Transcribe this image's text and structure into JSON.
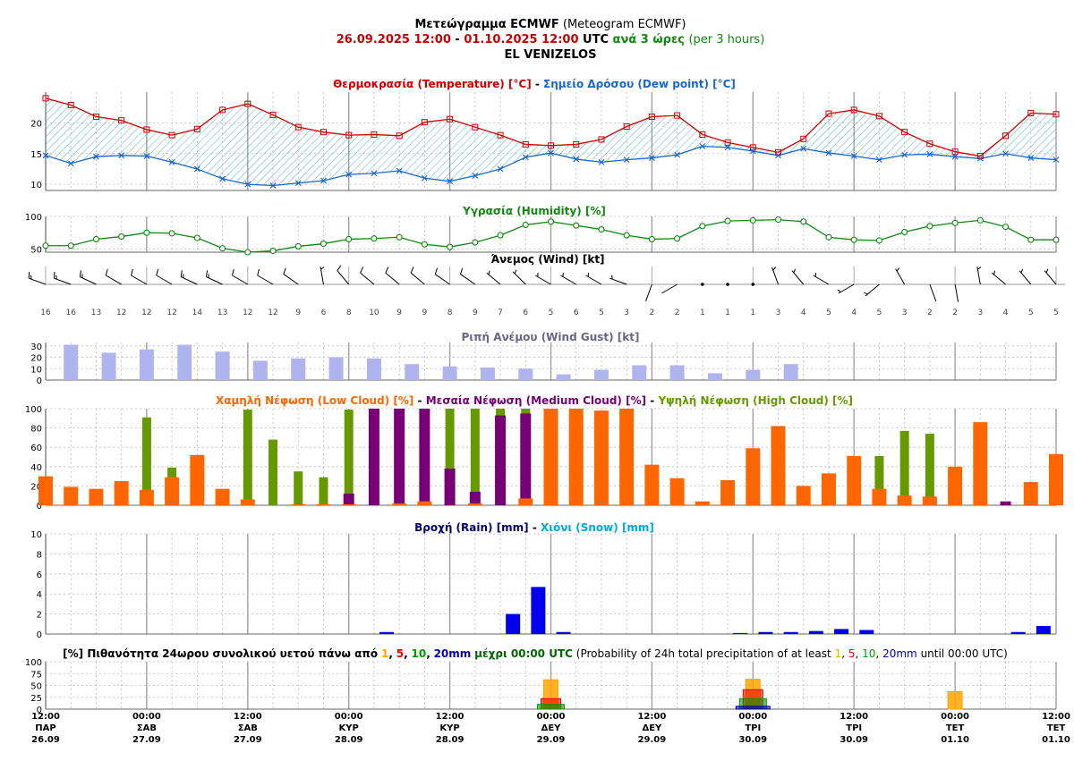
{
  "header": {
    "title_el": "Μετεώγραμμα ECMWF",
    "title_en": "(Meteogram ECMWF)",
    "period_start": "26.09.2025 12:00",
    "period_sep": "-",
    "period_end": "01.10.2025 12:00",
    "period_utc": "UTC",
    "step_el": "ανά 3 ώρες",
    "step_en": "(per 3 hours)",
    "station": "EL VENIZELOS"
  },
  "colors": {
    "temperature": "#cc0000",
    "dewpoint": "#1a66cc",
    "hatch": "#1aa0b0",
    "humidity": "#118811",
    "gust": "#b0b4ee",
    "gust_title": "#666688",
    "low_cloud": "#ff6600",
    "medium_cloud": "#770077",
    "high_cloud": "#669900",
    "rain": "#0000ee",
    "rain_title": "#000077",
    "snow_title": "#00aadd",
    "p1": "#ffa500",
    "p5": "#ee0000",
    "p10": "#009900",
    "p20": "#0000aa"
  },
  "chart_data": [
    {
      "type": "line",
      "panel": "temperature",
      "title_parts": [
        "Θερμοκρασία (Temperature) [°C]",
        "-",
        "Σημείο Δρόσου (Dew point) [°C]"
      ],
      "yticks": [
        "10",
        "15",
        "20"
      ],
      "ylim": [
        9,
        25
      ],
      "series": [
        {
          "name": "Θερμοκρασία (Temperature) [°C]",
          "values": [
            24.0,
            22.9,
            21.0,
            20.4,
            18.9,
            18.0,
            19.0,
            22.1,
            23.1,
            21.3,
            19.3,
            18.5,
            18.0,
            18.1,
            17.9,
            20.1,
            20.6,
            19.3,
            18.0,
            16.5,
            16.3,
            16.5,
            17.3,
            19.4,
            21.0,
            21.2,
            18.1,
            16.8,
            16.0,
            15.2,
            17.4,
            21.5,
            22.1,
            21.1,
            18.5,
            16.6,
            15.3,
            14.6,
            17.9,
            21.6,
            21.4
          ]
        },
        {
          "name": "Σημείο Δρόσου (Dew point) [°C]",
          "values": [
            14.7,
            13.4,
            14.5,
            14.7,
            14.6,
            13.6,
            12.5,
            10.9,
            10.0,
            9.8,
            10.2,
            10.6,
            11.6,
            11.8,
            12.2,
            11.0,
            10.5,
            11.4,
            12.5,
            14.4,
            15.1,
            14.1,
            13.6,
            14.0,
            14.3,
            14.8,
            16.2,
            16.0,
            15.4,
            14.7,
            15.8,
            15.1,
            14.6,
            14.0,
            14.8,
            14.9,
            14.5,
            14.2,
            15.0,
            14.3,
            14.0
          ]
        }
      ]
    },
    {
      "type": "line",
      "panel": "humidity",
      "title": "Υγρασία (Humidity) [%]",
      "yticks": [
        "50",
        "100"
      ],
      "ylim": [
        45,
        100
      ],
      "values": [
        55,
        55,
        65,
        69,
        75,
        74,
        67,
        51,
        45,
        47,
        54,
        58,
        65,
        66,
        68,
        57,
        53,
        60,
        71,
        87,
        92,
        86,
        80,
        71,
        65,
        66,
        85,
        93,
        94,
        95,
        92,
        68,
        64,
        63,
        76,
        85,
        90,
        94,
        84,
        64,
        64
      ]
    },
    {
      "type": "table",
      "panel": "wind",
      "title": "Άνεμος (Wind) [kt]",
      "speeds": [
        16,
        16,
        13,
        12,
        12,
        12,
        14,
        13,
        12,
        12,
        9,
        6,
        8,
        10,
        9,
        9,
        8,
        9,
        7,
        6,
        5,
        6,
        5,
        3,
        2,
        2,
        1,
        1,
        1,
        3,
        4,
        5,
        4,
        5,
        3,
        2,
        2,
        3,
        4,
        5,
        5
      ],
      "directions_deg": [
        290,
        290,
        295,
        300,
        300,
        300,
        295,
        295,
        300,
        300,
        305,
        350,
        320,
        310,
        310,
        310,
        305,
        305,
        310,
        315,
        300,
        300,
        300,
        290,
        200,
        240,
        0,
        0,
        160,
        340,
        320,
        300,
        240,
        230,
        330,
        160,
        170,
        350,
        310,
        320,
        320
      ]
    },
    {
      "type": "bar",
      "panel": "gust",
      "title": "Ριπή Ανέμου (Wind Gust) [kt]",
      "yticks": [
        "0",
        "10",
        "20",
        "30"
      ],
      "ylim": [
        0,
        33
      ],
      "values": [
        0,
        0,
        31,
        0,
        0,
        24,
        0,
        0,
        27,
        0,
        0,
        31,
        0,
        0,
        25,
        0,
        0,
        17,
        0,
        0,
        19,
        0,
        0,
        20,
        0,
        0,
        19,
        0,
        0,
        14,
        0,
        0,
        12,
        0,
        0,
        11,
        0,
        0,
        10,
        0,
        0,
        5,
        0,
        0,
        9,
        0,
        0,
        13,
        0,
        0,
        13,
        0,
        0,
        6,
        0,
        0,
        9,
        0,
        0,
        14,
        0,
        0,
        0,
        0,
        0,
        0,
        0,
        0,
        0,
        0,
        0,
        0,
        0,
        0,
        0,
        0,
        0,
        0,
        0,
        0,
        0
      ]
    },
    {
      "type": "bar",
      "panel": "cloud",
      "title_parts": [
        "Χαμηλή Νέφωση (Low Cloud) [%]",
        "-",
        "Μεσαία Νέφωση (Medium Cloud) [%]",
        "-",
        "Υψηλή Νέφωση (High Cloud) [%]"
      ],
      "yticks": [
        "0",
        "20",
        "40",
        "60",
        "80",
        "100"
      ],
      "ylim": [
        0,
        100
      ],
      "series": [
        {
          "name": "Χαμηλή Νέφωση (Low Cloud) [%]",
          "values": [
            30,
            19,
            17,
            25,
            16,
            29,
            52,
            17,
            6,
            0,
            1,
            1,
            1,
            0,
            2,
            4,
            0,
            2,
            0,
            7,
            100,
            100,
            98,
            100,
            42,
            28,
            4,
            26,
            59,
            82,
            20,
            33,
            51,
            17,
            10,
            9,
            40,
            86,
            0,
            24,
            53
          ]
        },
        {
          "name": "Μεσαία Νέφωση (Medium Cloud) [%]",
          "values": [
            0,
            0,
            0,
            0,
            0,
            0,
            0,
            0,
            0,
            0,
            0,
            0,
            12,
            100,
            100,
            100,
            38,
            14,
            93,
            95,
            0,
            0,
            0,
            0,
            0,
            0,
            0,
            0,
            0,
            0,
            0,
            0,
            0,
            0,
            0,
            0,
            0,
            0,
            4,
            0,
            0
          ]
        },
        {
          "name": "Υψηλή Νέφωση (High Cloud) [%]",
          "values": [
            0,
            0,
            0,
            0,
            91,
            39,
            0,
            0,
            99,
            68,
            35,
            29,
            99,
            0,
            0,
            0,
            100,
            100,
            100,
            100,
            0,
            0,
            0,
            0,
            0,
            0,
            0,
            0,
            0,
            0,
            0,
            0,
            0,
            51,
            77,
            74,
            0,
            0,
            0,
            0,
            0
          ]
        }
      ]
    },
    {
      "type": "bar",
      "panel": "precipitation",
      "title_parts": [
        "Βροχή (Rain) [mm]",
        "-",
        "Χιόνι (Snow) [mm]"
      ],
      "yticks": [
        "0",
        "2",
        "4",
        "6",
        "8",
        "10"
      ],
      "ylim": [
        0,
        10
      ],
      "series": [
        {
          "name": "Βροχή (Rain) [mm]",
          "values": [
            0,
            0,
            0,
            0,
            0,
            0,
            0,
            0,
            0,
            0,
            0,
            0,
            0,
            0,
            0.2,
            0,
            0,
            0,
            0,
            2.0,
            4.7,
            0.2,
            0,
            0,
            0,
            0,
            0,
            0,
            0.1,
            0.2,
            0.2,
            0.3,
            0.5,
            0.4,
            0,
            0,
            0,
            0,
            0,
            0.2,
            0.8
          ]
        },
        {
          "name": "Χιόνι (Snow) [mm]",
          "values": [
            0,
            0,
            0,
            0,
            0,
            0,
            0,
            0,
            0,
            0,
            0,
            0,
            0,
            0,
            0,
            0,
            0,
            0,
            0,
            0,
            0,
            0,
            0,
            0,
            0,
            0,
            0,
            0,
            0,
            0,
            0,
            0,
            0,
            0,
            0,
            0,
            0,
            0,
            0,
            0,
            0
          ]
        }
      ]
    },
    {
      "type": "bar",
      "panel": "probability",
      "title_parts": [
        "[%] Πιθανότητα 24ωρου συνολικού υετού πάνω από",
        "1",
        ",",
        "5",
        ",",
        "10",
        ",",
        "20mm",
        "μέχρι 00:00 UTC",
        "(Probability of 24h total precipitation of at least",
        "1",
        ",",
        "5",
        ",",
        "10",
        ",",
        "20mm",
        "until 00:00 UTC)"
      ],
      "yticks": [
        "0",
        "25",
        "50",
        "75",
        "100"
      ],
      "ylim": [
        0,
        100
      ],
      "categories": [
        "ΣΑΒ 27.09",
        "ΚΥΡ 28.09",
        "ΔΕΥ 29.09",
        "ΤΡΙ 30.09",
        "ΤΕΤ 01.10"
      ],
      "series": [
        {
          "name": "1",
          "values": [
            0,
            0,
            62,
            63,
            37
          ]
        },
        {
          "name": "5",
          "values": [
            0,
            0,
            22,
            41,
            0
          ]
        },
        {
          "name": "10",
          "values": [
            0,
            0,
            10,
            22,
            0
          ]
        },
        {
          "name": "20mm",
          "values": [
            0,
            0,
            0,
            6,
            0
          ]
        }
      ]
    }
  ],
  "xaxis": {
    "ticks": [
      {
        "time": "12:00",
        "day": "ΠΑΡ",
        "date": "26.09"
      },
      {
        "time": "00:00",
        "day": "ΣΑΒ",
        "date": "27.09"
      },
      {
        "time": "12:00",
        "day": "ΣΑΒ",
        "date": "27.09"
      },
      {
        "time": "00:00",
        "day": "ΚΥΡ",
        "date": "28.09"
      },
      {
        "time": "12:00",
        "day": "ΚΥΡ",
        "date": "28.09"
      },
      {
        "time": "00:00",
        "day": "ΔΕΥ",
        "date": "29.09"
      },
      {
        "time": "12:00",
        "day": "ΔΕΥ",
        "date": "29.09"
      },
      {
        "time": "00:00",
        "day": "ΤΡΙ",
        "date": "30.09"
      },
      {
        "time": "12:00",
        "day": "ΤΡΙ",
        "date": "30.09"
      },
      {
        "time": "00:00",
        "day": "ΤΕΤ",
        "date": "01.10"
      },
      {
        "time": "12:00",
        "day": "ΤΕΤ",
        "date": "01.10"
      }
    ]
  }
}
